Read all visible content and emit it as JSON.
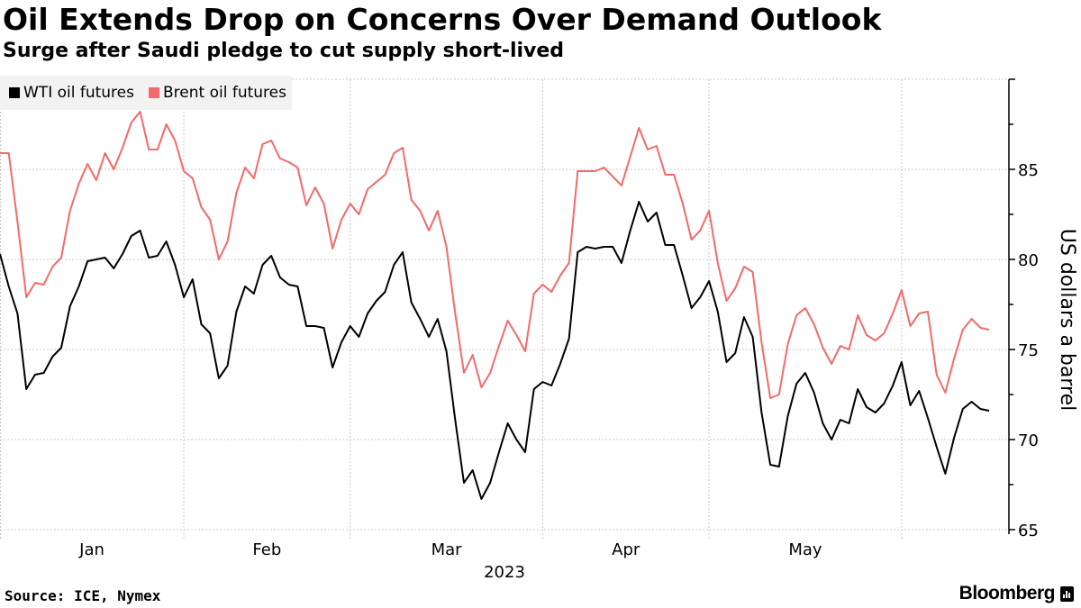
{
  "header": {
    "title": "Oil Extends Drop on Concerns Over Demand Outlook",
    "subtitle": "Surge after Saudi pledge to cut supply short-lived"
  },
  "legend": {
    "items": [
      {
        "label": "WTI oil futures",
        "color": "#000000"
      },
      {
        "label": "Brent oil futures",
        "color": "#f26a6a"
      }
    ]
  },
  "footer": {
    "source": "Source: ICE, Nymex",
    "brand": "Bloomberg"
  },
  "chart_data": {
    "type": "line",
    "title": "Oil Extends Drop on Concerns Over Demand Outlook",
    "subtitle": "Surge after Saudi pledge to cut supply short-lived",
    "xlabel": "2023",
    "ylabel": "US dollars a barrel",
    "y_axis_side": "right",
    "ylim": [
      65,
      90
    ],
    "yticks": [
      65,
      70,
      75,
      80,
      85,
      90
    ],
    "ytick_labels": [
      "65",
      "70",
      "75",
      "80",
      "85",
      ""
    ],
    "x_month_labels": [
      "Jan",
      "Feb",
      "Mar",
      "Apr",
      "May"
    ],
    "x_month_start_index": [
      0,
      21,
      40,
      62,
      81,
      103
    ],
    "x_year_label": "2023",
    "grid": true,
    "legend_position": "top-left",
    "series": [
      {
        "name": "WTI oil futures",
        "color": "#000000",
        "values": [
          80.3,
          78.5,
          77.0,
          72.8,
          73.6,
          73.7,
          74.6,
          75.1,
          77.4,
          78.5,
          79.9,
          80.0,
          80.1,
          79.5,
          80.3,
          81.3,
          81.6,
          80.1,
          80.2,
          81.0,
          79.7,
          77.9,
          78.9,
          76.4,
          75.9,
          73.4,
          74.1,
          77.1,
          78.5,
          78.1,
          79.7,
          80.2,
          79.0,
          78.6,
          78.5,
          76.3,
          76.3,
          76.2,
          74.0,
          75.4,
          76.3,
          75.7,
          77.0,
          77.7,
          78.2,
          79.7,
          80.4,
          77.6,
          76.7,
          75.7,
          76.7,
          74.9,
          71.1,
          67.6,
          68.3,
          66.7,
          67.6,
          69.3,
          70.9,
          70.0,
          69.3,
          72.8,
          73.2,
          73.0,
          74.2,
          75.6,
          80.4,
          80.7,
          80.6,
          80.7,
          80.7,
          79.8,
          81.6,
          83.2,
          82.1,
          82.6,
          80.8,
          80.8,
          79.1,
          77.3,
          77.9,
          78.8,
          77.1,
          74.3,
          74.8,
          76.8,
          75.7,
          71.5,
          68.6,
          68.5,
          71.3,
          73.1,
          73.7,
          72.6,
          70.9,
          70.0,
          71.1,
          70.9,
          72.8,
          71.8,
          71.5,
          72.0,
          73.0,
          74.3,
          71.9,
          72.7,
          71.2,
          69.6,
          68.1,
          70.1,
          71.7,
          72.1,
          71.7,
          71.6
        ]
      },
      {
        "name": "Brent oil futures",
        "color": "#f26a6a",
        "values": [
          85.9,
          85.9,
          82.1,
          77.9,
          78.7,
          78.6,
          79.6,
          80.1,
          82.7,
          84.2,
          85.3,
          84.4,
          85.9,
          85.0,
          86.2,
          87.6,
          88.2,
          86.1,
          86.1,
          87.5,
          86.6,
          84.9,
          84.5,
          82.9,
          82.2,
          80.0,
          81.0,
          83.7,
          85.1,
          84.5,
          86.4,
          86.6,
          85.6,
          85.4,
          85.1,
          83.0,
          84.0,
          83.1,
          80.6,
          82.2,
          83.1,
          82.5,
          83.9,
          84.3,
          84.7,
          85.9,
          86.2,
          83.3,
          82.7,
          81.6,
          82.7,
          80.7,
          77.0,
          73.7,
          74.7,
          72.9,
          73.7,
          75.2,
          76.6,
          75.8,
          74.9,
          78.1,
          78.6,
          78.2,
          79.1,
          79.8,
          84.9,
          84.9,
          84.9,
          85.1,
          84.6,
          84.1,
          85.7,
          87.3,
          86.1,
          86.3,
          84.7,
          84.7,
          83.1,
          81.1,
          81.6,
          82.7,
          79.8,
          77.7,
          78.4,
          79.6,
          79.3,
          75.4,
          72.3,
          72.5,
          75.3,
          76.9,
          77.3,
          76.4,
          75.1,
          74.2,
          75.2,
          75.0,
          76.9,
          75.8,
          75.5,
          75.9,
          77.0,
          78.3,
          76.3,
          77.0,
          77.1,
          73.6,
          72.6,
          74.5,
          76.1,
          76.7,
          76.2,
          76.1
        ]
      }
    ]
  }
}
